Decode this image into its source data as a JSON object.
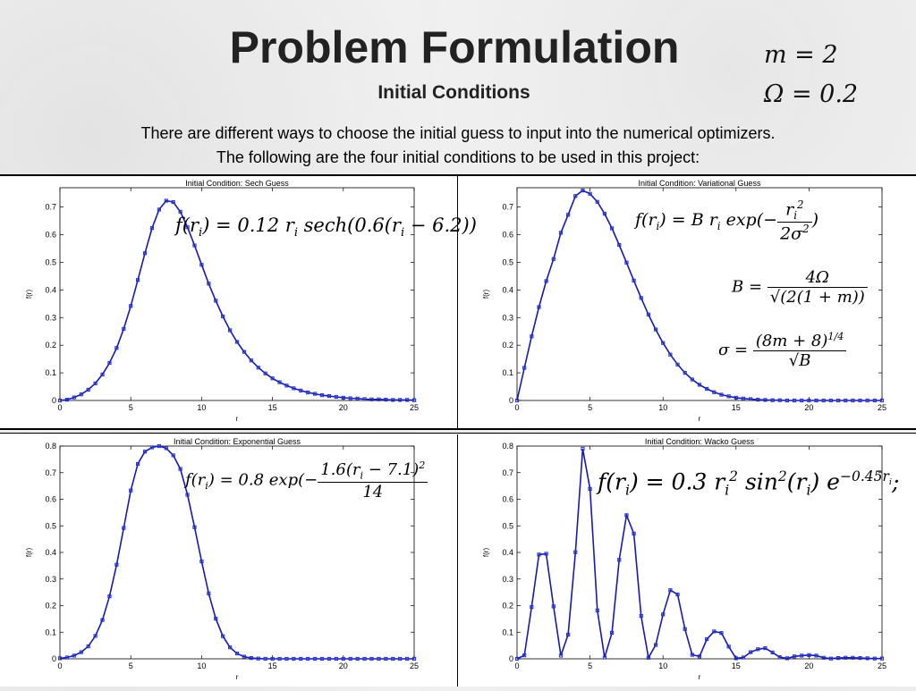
{
  "header": {
    "title": "Problem Formulation",
    "subtitle": "Initial Conditions",
    "param_m": "m = 2",
    "param_omega": "Ω = 0.2",
    "desc_line1": "There are different ways to choose the initial guess to input into the numerical optimizers.",
    "desc_line2": "The following are the four initial conditions to be used in this project:"
  },
  "colors": {
    "line": "#1a1aa8",
    "marker": "#2233cc",
    "axis": "#000000"
  },
  "equations": {
    "sech": "f(r_i) = 0.12 r_i sech(0.6(r_i − 6.2))",
    "variational": "f(r_i) = B r_i exp(−r_i^2 / 2σ^2)",
    "B": "B = 4Ω / √(2(1+m))",
    "sigma": "σ = (8m+8)^(1/4) / √B",
    "exponential": "f(r_i) = 0.8 exp(−1.6(r_i − 7.1)^2 / 14)",
    "wacko": "f(r_i) = 0.3 r_i^2 sin^2(r_i) e^(−0.45 r_i);"
  },
  "chart_data": [
    {
      "type": "line",
      "title": "Initial Condition:  Sech Guess",
      "xlabel": "r",
      "ylabel": "f(r)",
      "xlim": [
        0,
        25
      ],
      "ylim": [
        0,
        0.77
      ],
      "xticks": [
        "0",
        "5",
        "10",
        "15",
        "20",
        "25"
      ],
      "yticks": [
        "0",
        "0.1",
        "0.2",
        "0.3",
        "0.4",
        "0.5",
        "0.6",
        "0.7"
      ],
      "x": [
        0,
        0.5,
        1,
        1.5,
        2,
        2.5,
        3,
        3.5,
        4,
        4.5,
        5,
        5.5,
        6,
        6.5,
        7,
        7.5,
        8,
        8.5,
        9,
        9.5,
        10,
        10.5,
        11,
        11.5,
        12,
        12.5,
        13,
        13.5,
        14,
        14.5,
        15,
        15.5,
        16,
        16.5,
        17,
        17.5,
        18,
        18.5,
        19,
        19.5,
        20,
        20.5,
        21,
        21.5,
        22,
        22.5,
        23,
        23.5,
        24,
        24.5,
        25
      ],
      "y": [
        0,
        0.003,
        0.011,
        0.022,
        0.039,
        0.062,
        0.094,
        0.136,
        0.19,
        0.259,
        0.342,
        0.436,
        0.533,
        0.624,
        0.691,
        0.723,
        0.718,
        0.683,
        0.627,
        0.561,
        0.491,
        0.423,
        0.361,
        0.304,
        0.254,
        0.212,
        0.176,
        0.145,
        0.119,
        0.098,
        0.08,
        0.066,
        0.054,
        0.044,
        0.036,
        0.029,
        0.024,
        0.019,
        0.016,
        0.013,
        0.01,
        0.008,
        0.007,
        0.005,
        0.004,
        0.004,
        0.003,
        0.002,
        0.002,
        0.002,
        0.001
      ]
    },
    {
      "type": "line",
      "title": "Initial Condition:  Variational Guess",
      "xlabel": "r",
      "ylabel": "f(r)",
      "xlim": [
        0,
        25
      ],
      "ylim": [
        0,
        0.77
      ],
      "xticks": [
        "0",
        "5",
        "10",
        "15",
        "20",
        "25"
      ],
      "yticks": [
        "0",
        "0.1",
        "0.2",
        "0.3",
        "0.4",
        "0.5",
        "0.6",
        "0.7"
      ],
      "x": [
        0,
        0.5,
        1,
        1.5,
        2,
        2.5,
        3,
        3.5,
        4,
        4.5,
        5,
        5.5,
        6,
        6.5,
        7,
        7.5,
        8,
        8.5,
        9,
        9.5,
        10,
        10.5,
        11,
        11.5,
        12,
        12.5,
        13,
        13.5,
        14,
        14.5,
        15,
        15.5,
        16,
        16.5,
        17,
        17.5,
        18,
        18.5,
        19,
        19.5,
        20,
        20.5,
        21,
        21.5,
        22,
        22.5,
        23,
        23.5,
        24,
        24.5,
        25
      ],
      "y": [
        0,
        0.118,
        0.232,
        0.338,
        0.432,
        0.512,
        0.607,
        0.672,
        0.74,
        0.76,
        0.748,
        0.719,
        0.676,
        0.623,
        0.563,
        0.499,
        0.434,
        0.371,
        0.311,
        0.257,
        0.208,
        0.166,
        0.13,
        0.1,
        0.076,
        0.057,
        0.042,
        0.03,
        0.021,
        0.015,
        0.01,
        0.007,
        0.005,
        0.003,
        0.002,
        0.001,
        0.001,
        0,
        0,
        0,
        0,
        0,
        0,
        0,
        0,
        0,
        0,
        0,
        0,
        0,
        0
      ]
    },
    {
      "type": "line",
      "title": "Initial Condition:  Exponential Guess",
      "xlabel": "r",
      "ylabel": "f(r)",
      "xlim": [
        0,
        25
      ],
      "ylim": [
        0,
        0.8
      ],
      "xticks": [
        "0",
        "5",
        "10",
        "15",
        "20",
        "25"
      ],
      "yticks": [
        "0",
        "0.1",
        "0.2",
        "0.3",
        "0.4",
        "0.5",
        "0.6",
        "0.7",
        "0.8"
      ],
      "x": [
        0,
        0.5,
        1,
        1.5,
        2,
        2.5,
        3,
        3.5,
        4,
        4.5,
        5,
        5.5,
        6,
        6.5,
        7,
        7.5,
        8,
        8.5,
        9,
        9.5,
        10,
        10.5,
        11,
        11.5,
        12,
        12.5,
        13,
        13.5,
        14,
        14.5,
        15,
        15.5,
        16,
        16.5,
        17,
        17.5,
        18,
        18.5,
        19,
        19.5,
        20,
        20.5,
        21,
        21.5,
        22,
        22.5,
        23,
        23.5,
        24,
        24.5,
        25
      ],
      "y": [
        0.002,
        0.005,
        0.012,
        0.025,
        0.047,
        0.086,
        0.146,
        0.235,
        0.354,
        0.492,
        0.633,
        0.733,
        0.779,
        0.795,
        0.8,
        0.792,
        0.765,
        0.714,
        0.617,
        0.495,
        0.366,
        0.246,
        0.151,
        0.085,
        0.043,
        0.02,
        0.008,
        0.003,
        0.001,
        0,
        0,
        0,
        0,
        0,
        0,
        0,
        0,
        0,
        0,
        0,
        0,
        0,
        0,
        0,
        0,
        0,
        0,
        0,
        0,
        0,
        0
      ]
    },
    {
      "type": "line",
      "title": "Initial Condition:  Wacko Guess",
      "xlabel": "r",
      "ylabel": "f(r)",
      "xlim": [
        0,
        25
      ],
      "ylim": [
        0,
        0.8
      ],
      "xticks": [
        "0",
        "5",
        "10",
        "15",
        "20",
        "25"
      ],
      "yticks": [
        "0",
        "0.1",
        "0.2",
        "0.3",
        "0.4",
        "0.5",
        "0.6",
        "0.7",
        "0.8"
      ],
      "x": [
        0,
        0.5,
        1,
        1.5,
        2,
        2.5,
        3,
        3.5,
        4,
        4.5,
        5,
        5.5,
        6,
        6.5,
        7,
        7.5,
        8,
        8.5,
        9,
        9.5,
        10,
        10.5,
        11,
        11.5,
        12,
        12.5,
        13,
        13.5,
        14,
        14.5,
        15,
        15.5,
        16,
        16.5,
        17,
        17.5,
        18,
        18.5,
        19,
        19.5,
        20,
        20.5,
        21,
        21.5,
        22,
        22.5,
        23,
        23.5,
        24,
        24.5,
        25
      ],
      "y": [
        0,
        0.013,
        0.195,
        0.392,
        0.395,
        0.197,
        0.012,
        0.091,
        0.401,
        0.79,
        0.639,
        0.182,
        0.005,
        0.098,
        0.372,
        0.54,
        0.471,
        0.161,
        0.004,
        0.052,
        0.167,
        0.258,
        0.242,
        0.112,
        0.015,
        0.009,
        0.074,
        0.103,
        0.097,
        0.046,
        0.002,
        0.005,
        0.025,
        0.036,
        0.04,
        0.024,
        0.006,
        0.002,
        0.009,
        0.012,
        0.014,
        0.012,
        0.004,
        0.001,
        0.003,
        0.004,
        0.004,
        0.003,
        0.002,
        0.001,
        0.001
      ]
    }
  ]
}
